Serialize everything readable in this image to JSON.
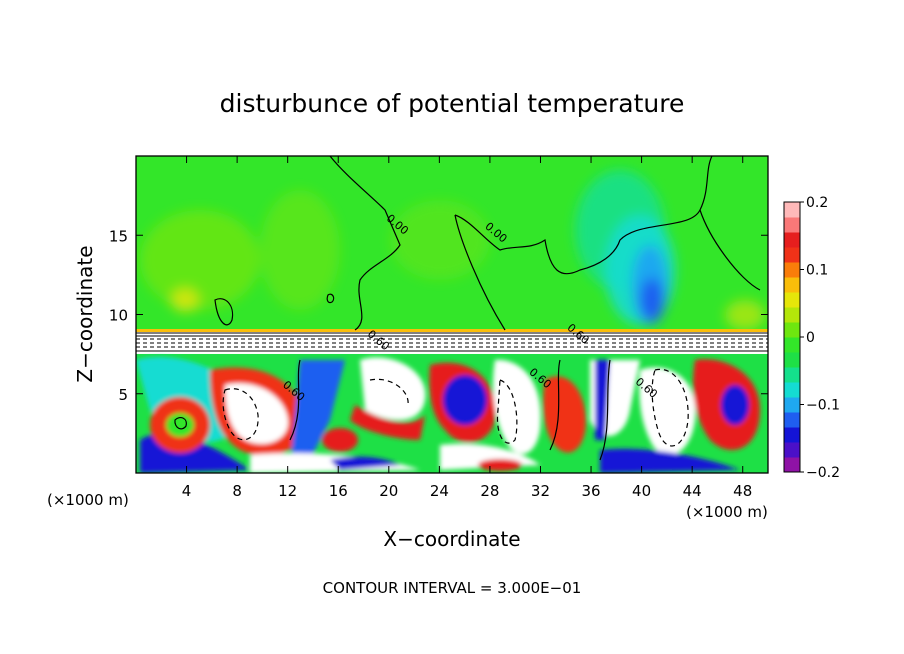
{
  "chart_data": {
    "type": "heatmap",
    "title": "disturbunce of potential temperature",
    "xlabel": "X−coordinate",
    "ylabel": "Z−coordinate",
    "x_unit_left": "(×1000 m)",
    "x_unit_right": "(×1000 m)",
    "footer": "CONTOUR INTERVAL = 3.000E−01",
    "xlim": [
      0,
      50
    ],
    "ylim": [
      0,
      20
    ],
    "x_ticks": [
      4,
      8,
      12,
      16,
      20,
      24,
      28,
      32,
      36,
      40,
      44,
      48
    ],
    "x_tick_labels": [
      "4",
      "8",
      "12",
      "16",
      "20",
      "24",
      "28",
      "32",
      "36",
      "40",
      "44",
      "48"
    ],
    "y_ticks": [
      5,
      10,
      15
    ],
    "y_tick_labels": [
      "5",
      "10",
      "15"
    ],
    "contour_labels": [
      {
        "text": "0.00",
        "x": 20.5,
        "y": 15.5
      },
      {
        "text": "0.00",
        "x": 28.3,
        "y": 15.0
      },
      {
        "text": "0.60",
        "x": 19.0,
        "y": 8.2
      },
      {
        "text": "0.60",
        "x": 34.8,
        "y": 8.6
      },
      {
        "text": "0.60",
        "x": 12.3,
        "y": 5.0
      },
      {
        "text": "0.60",
        "x": 31.8,
        "y": 5.8
      },
      {
        "text": "0.60",
        "x": 40.2,
        "y": 5.2
      }
    ],
    "colorbar": {
      "range": [
        -0.2,
        0.2
      ],
      "tick_labels": [
        "0.2",
        "0.1",
        "0",
        "−0.1",
        "−0.2"
      ],
      "tick_values": [
        0.2,
        0.1,
        0,
        -0.1,
        -0.2
      ],
      "colors": [
        "#8f12a6",
        "#4b10c8",
        "#1414d6",
        "#1f5ef0",
        "#1fa8f0",
        "#14dcd2",
        "#14e08c",
        "#1ee046",
        "#33e629",
        "#6ee60f",
        "#b4e60a",
        "#e6e60a",
        "#fabe0a",
        "#fa7d0a",
        "#f03218",
        "#e61e1e",
        "#fa7878",
        "#ffb9b9"
      ]
    },
    "bands": [
      {
        "name": "upper",
        "z": [
          9,
          20
        ],
        "dominant_value": 0.0,
        "feature": "negative anomaly near x=40, z=10–15"
      },
      {
        "name": "lower",
        "z": [
          0,
          8
        ],
        "dominant_value": "mixed",
        "feature": "strong alternating anomalies"
      }
    ]
  }
}
